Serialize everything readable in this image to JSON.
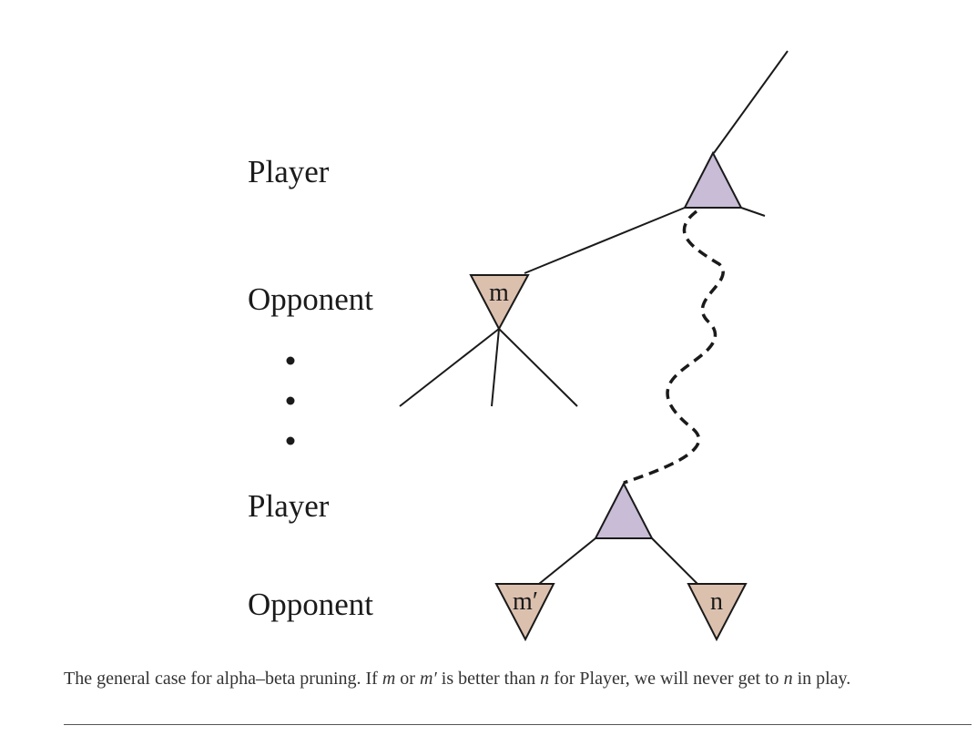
{
  "levels": {
    "player_top": "Player",
    "opponent_top": "Opponent",
    "player_bottom": "Player",
    "opponent_bottom": "Opponent"
  },
  "nodes": {
    "m": "m",
    "m_prime": "m′",
    "n": "n"
  },
  "colors": {
    "player_node": "#c8bcd6",
    "opponent_node": "#dcc0ae"
  },
  "caption": {
    "part1": "The general case for alpha–beta pruning. If ",
    "m1": "m",
    "part2": " or ",
    "m2": "m′",
    "part3": " is better than ",
    "n1": "n",
    "part4": " for Player, we will never get to ",
    "n2": "n",
    "part5": " in play."
  }
}
